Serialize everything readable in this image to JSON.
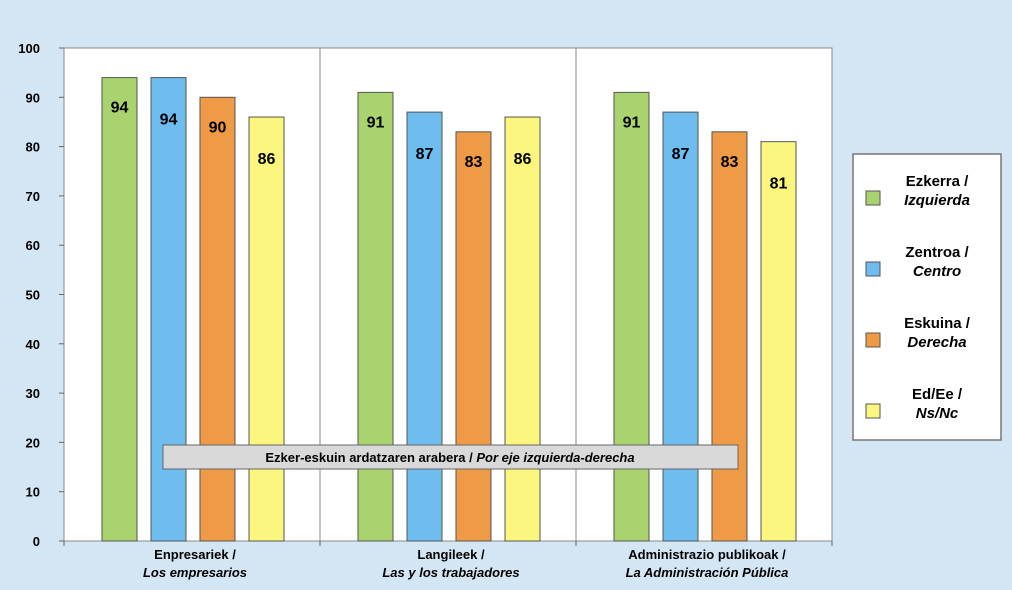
{
  "chart_data": {
    "type": "bar",
    "ylim": [
      0,
      100
    ],
    "y_ticks": [
      "0",
      "10",
      "20",
      "30",
      "40",
      "50",
      "60",
      "70",
      "80",
      "90",
      "100"
    ],
    "grid": false,
    "legend_position": "right",
    "annotation": {
      "prefix": "Ezker-eskuin ardatzaren arabera / ",
      "italic": "Por eje izquierda-derecha"
    },
    "categories": [
      {
        "line1": "Enpresariek /",
        "line2": "Los empresarios"
      },
      {
        "line1": "Langileek /",
        "line2": "Las y los trabajadores"
      },
      {
        "line1": "Administrazio publikoak /",
        "line2": "La Administración Pública"
      }
    ],
    "series": [
      {
        "name": "Ezkerra /",
        "name_italic": "Izquierda",
        "color": "#a9d36e",
        "values": [
          94,
          91,
          91
        ]
      },
      {
        "name": "Zentroa /",
        "name_italic": "Centro",
        "color": "#6fbcef",
        "values": [
          94,
          87,
          87
        ]
      },
      {
        "name": "Eskuina /",
        "name_italic": "Derecha",
        "color": "#ef9a45",
        "values": [
          90,
          83,
          83
        ]
      },
      {
        "name": "Ed/Ee /",
        "name_italic": "Ns/Nc",
        "color": "#fbf77e",
        "values": [
          86,
          86,
          81
        ]
      }
    ]
  }
}
